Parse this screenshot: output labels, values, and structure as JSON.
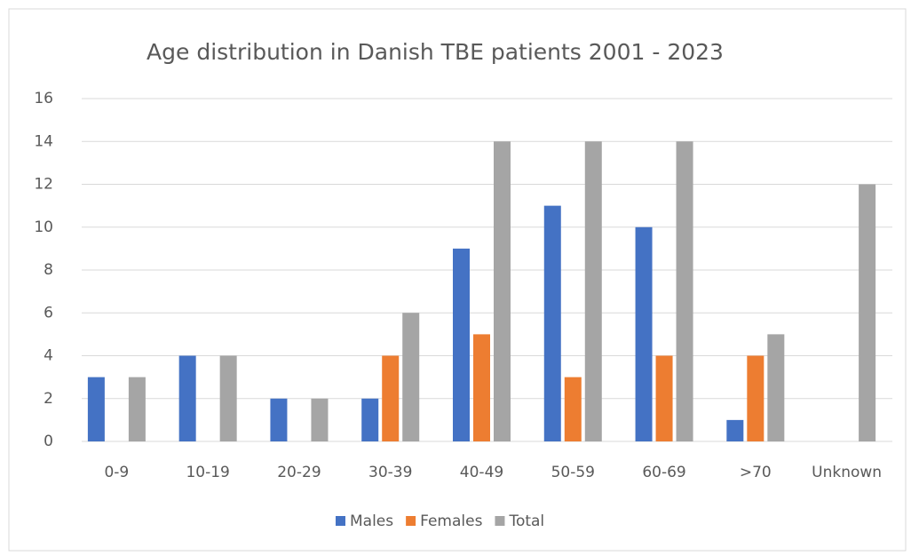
{
  "chart_data": {
    "type": "bar",
    "title": "Age distribution in Danish TBE patients 2001 - 2023",
    "categories": [
      "0-9",
      "10-19",
      "20-29",
      "30-39",
      "40-49",
      "50-59",
      "60-69",
      ">70",
      "Unknown"
    ],
    "series": [
      {
        "name": "Males",
        "color": "#4472c4",
        "values": [
          3,
          4,
          2,
          2,
          9,
          11,
          10,
          1,
          0
        ]
      },
      {
        "name": "Females",
        "color": "#ed7d31",
        "values": [
          0,
          0,
          0,
          4,
          5,
          3,
          4,
          4,
          0
        ]
      },
      {
        "name": "Total",
        "color": "#a5a5a5",
        "values": [
          3,
          4,
          2,
          6,
          14,
          14,
          14,
          5,
          12
        ]
      }
    ],
    "ylim": [
      0,
      16
    ],
    "yticks": [
      0,
      2,
      4,
      6,
      8,
      10,
      12,
      14,
      16
    ],
    "grid": true,
    "legend": "bottom"
  }
}
